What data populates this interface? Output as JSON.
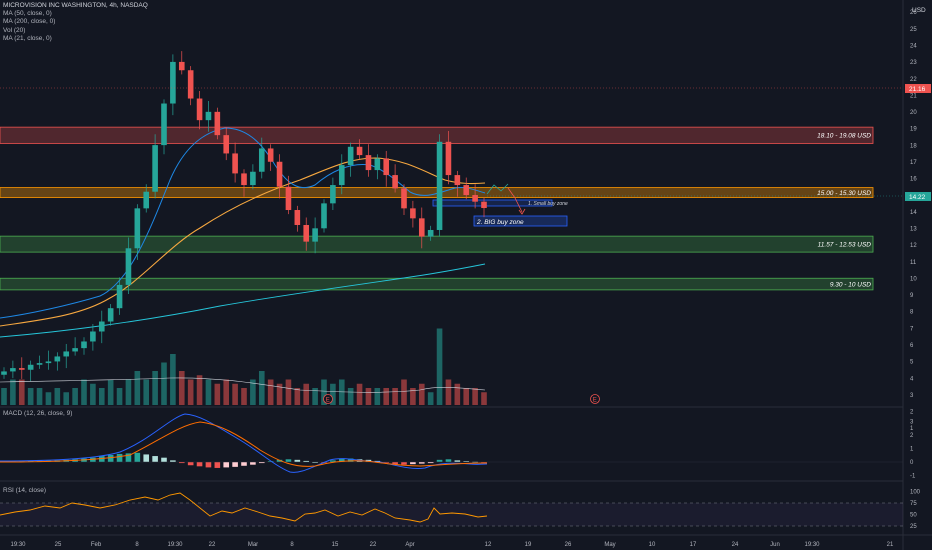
{
  "symbol": {
    "title": "MICROVISION INC WASHINGTON, 4h, NASDAQ",
    "indicators": [
      "MA (50, close, 0)",
      "MA (200, close, 0)",
      "Vol (20)",
      "MA (21, close, 0)"
    ]
  },
  "price_axis": {
    "currency": "USD",
    "ticks": [
      "26",
      "25",
      "24",
      "23",
      "22",
      "21",
      "20",
      "19",
      "18",
      "17",
      "16",
      "15",
      "14",
      "13",
      "12",
      "11",
      "10",
      "9",
      "8",
      "7",
      "6",
      "5",
      "4",
      "3",
      "2",
      "1"
    ],
    "last_price": "14.22",
    "marker_price": "21.16"
  },
  "zones": [
    {
      "label": "18.10 - 19.08 USD",
      "low": 18.1,
      "high": 19.08,
      "kind": "resistance"
    },
    {
      "label": "15.00 - 15.30 USD",
      "low": 15.0,
      "high": 15.3,
      "kind": "pivot"
    },
    {
      "label": "11.57 - 12.53 USD",
      "low": 11.57,
      "high": 12.53,
      "kind": "support"
    },
    {
      "label": "9.30 - 10 USD",
      "low": 9.3,
      "high": 10.0,
      "kind": "support"
    }
  ],
  "annotations": {
    "small_buy_zone": "1. Small buy zone",
    "big_buy_zone": "2. BIG buy zone"
  },
  "macd": {
    "label": "MACD (12, 26, close, 9)",
    "ticks": [
      "3",
      "2",
      "1",
      "0",
      "-1"
    ]
  },
  "rsi": {
    "label": "RSI (14, close)",
    "ticks": [
      "100",
      "75",
      "50",
      "25"
    ]
  },
  "time_axis": [
    "19:30",
    "25",
    "Feb",
    "8",
    "19:30",
    "22",
    "Mar",
    "8",
    "15",
    "22",
    "Apr",
    "12",
    "19",
    "26",
    "May",
    "10",
    "17",
    "24",
    "Jun",
    "19:30",
    "21"
  ],
  "earnings_marker": "E",
  "colors": {
    "background": "#131722",
    "up": "#26a69a",
    "down": "#ef5350",
    "ma50": "#f7a840",
    "ma200": "#26c6da",
    "ma21": "#1e88e5",
    "rsi": "#ff9800"
  },
  "chart_data": {
    "type": "candlestick",
    "title": "MICROVISION INC WASHINGTON, 4h, NASDAQ",
    "y_unit": "USD",
    "ylim": [
      1,
      26
    ],
    "candle_closes_approx": [
      4.4,
      4.6,
      4.5,
      4.8,
      4.9,
      5.0,
      5.3,
      5.6,
      5.8,
      6.2,
      6.8,
      7.4,
      8.2,
      9.6,
      11.8,
      14.2,
      15.2,
      18.0,
      20.5,
      23.0,
      22.5,
      20.8,
      19.5,
      20.0,
      18.6,
      17.5,
      16.3,
      15.6,
      16.4,
      17.8,
      17.0,
      15.5,
      14.1,
      13.2,
      12.2,
      13.0,
      14.5,
      15.6,
      16.8,
      17.9,
      17.4,
      16.5,
      17.2,
      16.2,
      15.4,
      14.2,
      13.6,
      12.5,
      12.9,
      18.2,
      16.2,
      15.6,
      15.0,
      14.6,
      14.22
    ]
  }
}
